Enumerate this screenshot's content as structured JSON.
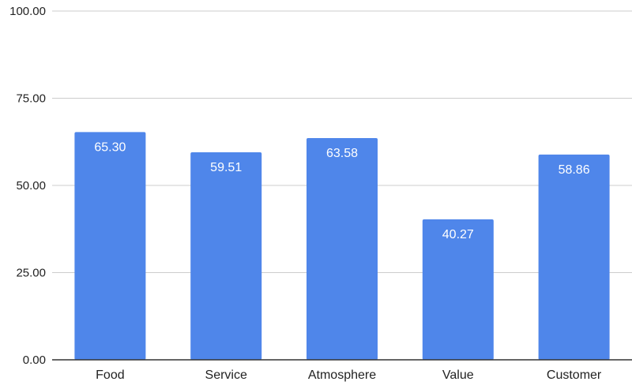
{
  "chart_data": {
    "type": "bar",
    "categories": [
      "Food",
      "Service",
      "Atmosphere",
      "Value",
      "Customer"
    ],
    "values": [
      65.3,
      59.51,
      63.58,
      40.27,
      58.86
    ],
    "data_labels": [
      "65.30",
      "59.51",
      "63.58",
      "40.27",
      "58.86"
    ],
    "y_ticks": [
      0,
      25,
      50,
      75,
      100
    ],
    "y_tick_labels": [
      "0.00",
      "25.00",
      "50.00",
      "75.00",
      "100.00"
    ],
    "ylim": [
      0,
      100
    ],
    "title": "",
    "xlabel": "",
    "ylabel": "",
    "grid": true,
    "legend": "none",
    "colors": {
      "bar": "#4f86ea",
      "gridline": "#cccccc",
      "baseline": "#333333"
    }
  }
}
